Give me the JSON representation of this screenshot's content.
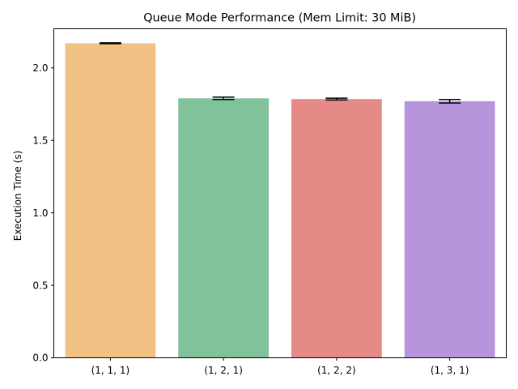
{
  "chart_data": {
    "type": "bar",
    "title": "Queue Mode Performance (Mem Limit: 30 MiB)",
    "xlabel": "",
    "ylabel": "Execution Time (s)",
    "categories": [
      "(1, 1, 1)",
      "(1, 2, 1)",
      "(1, 2, 2)",
      "(1, 3, 1)"
    ],
    "values": [
      2.17,
      1.79,
      1.785,
      1.77
    ],
    "errors": [
      0.003,
      0.008,
      0.006,
      0.012
    ],
    "colors": [
      "#f2c285",
      "#80c299",
      "#e68a88",
      "#b794db"
    ],
    "ylim": [
      0,
      2.27
    ],
    "yticks": [
      0.0,
      0.5,
      1.0,
      1.5,
      2.0
    ],
    "ytick_labels": [
      "0.0",
      "0.5",
      "1.0",
      "1.5",
      "2.0"
    ],
    "grid": false,
    "legend": "none"
  }
}
